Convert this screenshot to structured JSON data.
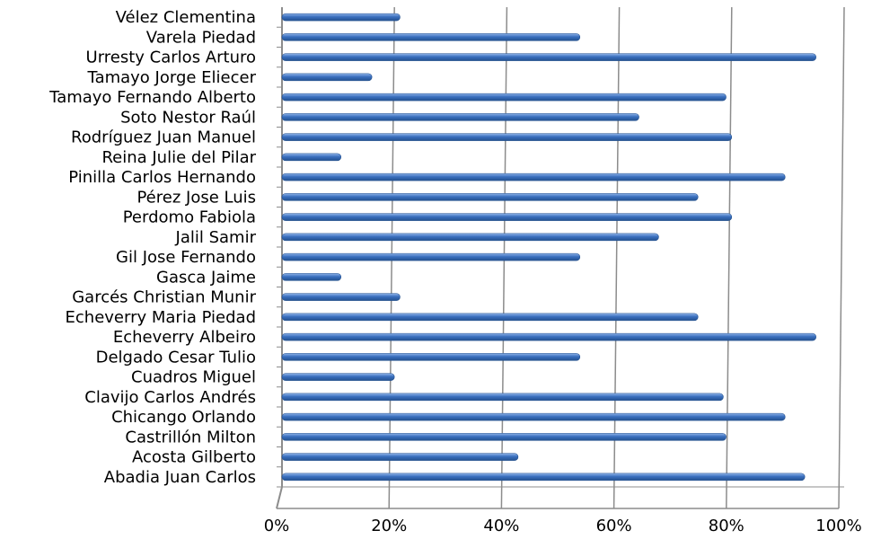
{
  "chart_data": {
    "type": "bar",
    "orientation": "horizontal",
    "categories": [
      "Abadia Juan Carlos",
      "Acosta Gilberto",
      "Castrillón Milton",
      "Chicango Orlando",
      "Clavijo Carlos Andrés",
      "Cuadros Miguel",
      "Delgado Cesar Tulio",
      "Echeverry Albeiro",
      "Echeverry Maria Piedad",
      "Garcés Christian Munir",
      "Gasca Jaime",
      "Gil Jose Fernando",
      "Jalil Samir",
      "Perdomo Fabiola",
      "Pérez Jose Luis",
      "Pinilla Carlos Hernando",
      "Reina Julie del Pilar",
      "Rodríguez Juan Manuel",
      "Soto Nestor Raúl",
      "Tamayo Fernando Alberto",
      "Tamayo Jorge Eliecer",
      "Urresty Carlos Arturo",
      "Varela Piedad",
      "Vélez Clementina"
    ],
    "values": [
      0.93,
      0.42,
      0.79,
      0.895,
      0.785,
      0.2,
      0.53,
      0.95,
      0.74,
      0.21,
      0.105,
      0.53,
      0.67,
      0.8,
      0.74,
      0.895,
      0.105,
      0.8,
      0.635,
      0.79,
      0.16,
      0.95,
      0.53,
      0.21
    ],
    "xlim": [
      0,
      1
    ],
    "xticks": [
      "0%",
      "20%",
      "40%",
      "60%",
      "80%",
      "100%"
    ],
    "title": "",
    "xlabel": "",
    "ylabel": "",
    "grid": true,
    "colors": {
      "bar": "#3a6fbe",
      "bar_dark": "#24518f",
      "bar_light": "#8fb3e8",
      "grid": "#8c8c8c",
      "axis": "#8c8c8c"
    }
  }
}
